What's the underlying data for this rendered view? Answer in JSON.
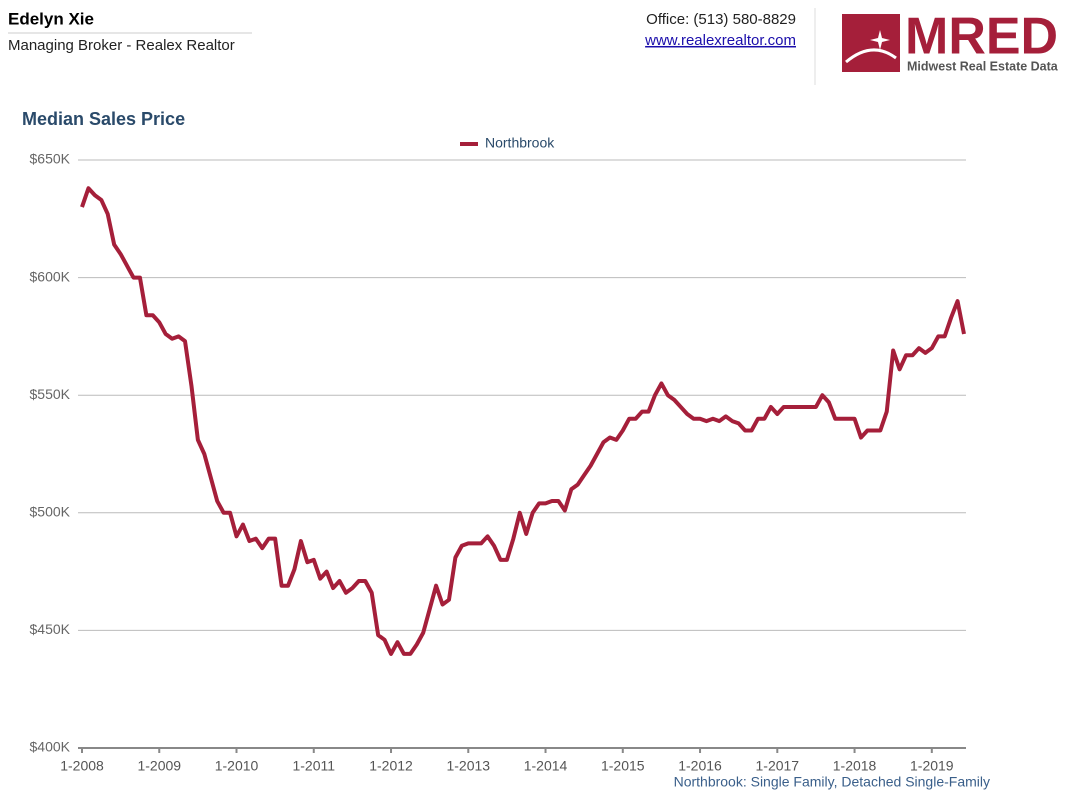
{
  "header": {
    "name": "Edelyn Xie",
    "role": "Managing Broker - Realex Realtor",
    "office": "Office: (513) 580-8829",
    "website": "www.realexrealtor.com",
    "logo_text": "MRED",
    "logo_subtitle": "Midwest Real Estate Data"
  },
  "chart_data": {
    "type": "line",
    "title": "Median Sales Price",
    "note": "Northbrook: Single Family, Detached Single-Family",
    "legend": "top",
    "categories": [
      "1-2008",
      null,
      null,
      null,
      null,
      null,
      null,
      null,
      null,
      null,
      null,
      null,
      "1-2009",
      null,
      null,
      null,
      null,
      null,
      null,
      null,
      null,
      null,
      null,
      null,
      "1-2010",
      null,
      null,
      null,
      null,
      null,
      null,
      null,
      null,
      null,
      null,
      null,
      "1-2011",
      null,
      null,
      null,
      null,
      null,
      null,
      null,
      null,
      null,
      null,
      null,
      "1-2012",
      null,
      null,
      null,
      null,
      null,
      null,
      null,
      null,
      null,
      null,
      null,
      "1-2013",
      null,
      null,
      null,
      null,
      null,
      null,
      null,
      null,
      null,
      null,
      null,
      "1-2014",
      null,
      null,
      null,
      null,
      null,
      null,
      null,
      null,
      null,
      null,
      null,
      "1-2015",
      null,
      null,
      null,
      null,
      null,
      null,
      null,
      null,
      null,
      null,
      null,
      "1-2016",
      null,
      null,
      null,
      null,
      null,
      null,
      null,
      null,
      null,
      null,
      null,
      "1-2017",
      null,
      null,
      null,
      null,
      null,
      null,
      null,
      null,
      null,
      null,
      null,
      "1-2018",
      null,
      null,
      null,
      null,
      null,
      null,
      null,
      null,
      null,
      null,
      null,
      "1-2019",
      null,
      null,
      null,
      null,
      null
    ],
    "series": [
      {
        "name": "Northbrook",
        "color": "#a51f3a",
        "values": [
          630000,
          638000,
          635000,
          633000,
          627000,
          614000,
          610000,
          605000,
          600000,
          600000,
          584000,
          584000,
          581000,
          576000,
          574000,
          575000,
          573000,
          554000,
          531000,
          525000,
          515000,
          505000,
          500000,
          500000,
          490000,
          495000,
          488000,
          489000,
          485000,
          489000,
          489000,
          469000,
          469000,
          476000,
          488000,
          479000,
          480000,
          472000,
          475000,
          468000,
          471000,
          466000,
          468000,
          471000,
          471000,
          466000,
          448000,
          446000,
          440000,
          445000,
          440000,
          440000,
          444000,
          449000,
          459000,
          469000,
          461000,
          463000,
          481000,
          486000,
          487000,
          487000,
          487000,
          490000,
          486000,
          480000,
          480000,
          489000,
          500000,
          491000,
          500000,
          504000,
          504000,
          505000,
          505000,
          501000,
          510000,
          512000,
          516000,
          520000,
          525000,
          530000,
          532000,
          531000,
          535000,
          540000,
          540000,
          543000,
          543000,
          550000,
          555000,
          550000,
          548000,
          545000,
          542000,
          540000,
          540000,
          539000,
          540000,
          539000,
          541000,
          539000,
          538000,
          535000,
          535000,
          540000,
          540000,
          545000,
          542000,
          545000,
          545000,
          545000,
          545000,
          545000,
          545000,
          550000,
          547000,
          540000,
          540000,
          540000,
          540000,
          532000,
          535000,
          535000,
          535000,
          543000,
          569000,
          561000,
          567000,
          567000,
          570000,
          568000,
          570000,
          575000,
          575000,
          583000,
          590000,
          576000
        ]
      }
    ],
    "ylim": [
      400000,
      650000
    ],
    "yticks": [
      {
        "value": 400000,
        "label": "$400K"
      },
      {
        "value": 450000,
        "label": "$450K"
      },
      {
        "value": 500000,
        "label": "$500K"
      },
      {
        "value": 550000,
        "label": "$550K"
      },
      {
        "value": 600000,
        "label": "$600K"
      },
      {
        "value": 650000,
        "label": "$650K"
      }
    ],
    "grid": true
  }
}
